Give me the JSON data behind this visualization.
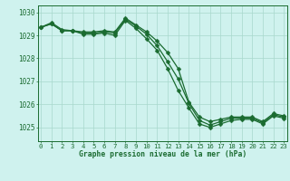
{
  "xlabel": "Graphe pression niveau de la mer (hPa)",
  "x_ticks": [
    0,
    1,
    2,
    3,
    4,
    5,
    6,
    7,
    8,
    9,
    10,
    11,
    12,
    13,
    14,
    15,
    16,
    17,
    18,
    19,
    20,
    21,
    22,
    23
  ],
  "ylim": [
    1024.4,
    1030.3
  ],
  "xlim": [
    -0.3,
    23.3
  ],
  "yticks": [
    1025,
    1026,
    1027,
    1028,
    1029,
    1030
  ],
  "background_color": "#cff2ee",
  "grid_color": "#a8d8cc",
  "line_color": "#1a6b30",
  "line1": [
    1029.35,
    1029.55,
    1029.25,
    1029.2,
    1029.15,
    1029.15,
    1029.2,
    1029.15,
    1029.75,
    1029.45,
    1029.15,
    1028.75,
    1028.25,
    1027.55,
    1026.1,
    1025.45,
    1025.25,
    1025.35,
    1025.45,
    1025.45,
    1025.45,
    1025.25,
    1025.6,
    1025.5
  ],
  "line2": [
    1029.35,
    1029.5,
    1029.2,
    1029.2,
    1029.1,
    1029.1,
    1029.15,
    1029.1,
    1029.7,
    1029.4,
    1029.05,
    1028.55,
    1027.85,
    1027.1,
    1026.05,
    1025.3,
    1025.1,
    1025.25,
    1025.4,
    1025.4,
    1025.4,
    1025.2,
    1025.55,
    1025.45
  ],
  "line3": [
    1029.35,
    1029.5,
    1029.2,
    1029.2,
    1029.05,
    1029.05,
    1029.1,
    1029.0,
    1029.65,
    1029.3,
    1028.85,
    1028.35,
    1027.55,
    1026.6,
    1025.85,
    1025.15,
    1025.0,
    1025.15,
    1025.3,
    1025.35,
    1025.35,
    1025.15,
    1025.5,
    1025.4
  ],
  "marker": "D",
  "markersize": 2.5,
  "linewidth": 0.9
}
